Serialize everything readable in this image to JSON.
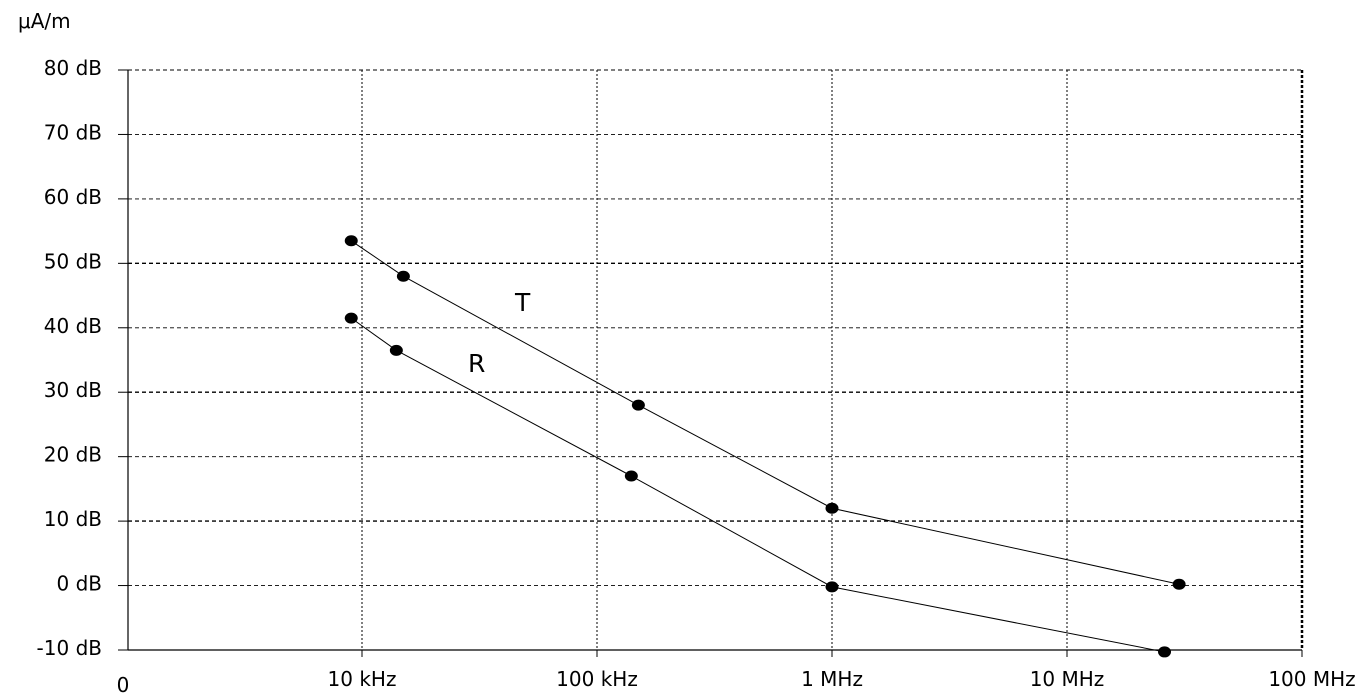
{
  "chart_data": {
    "type": "line",
    "ylabel": "μA/m",
    "yticks": [
      {
        "value": 80,
        "label": "80 dB"
      },
      {
        "value": 70,
        "label": "70 dB"
      },
      {
        "value": 60,
        "label": "60 dB"
      },
      {
        "value": 50,
        "label": "50 dB"
      },
      {
        "value": 40,
        "label": "40 dB"
      },
      {
        "value": 30,
        "label": "30 dB"
      },
      {
        "value": 20,
        "label": "20 dB"
      },
      {
        "value": 10,
        "label": "10 dB"
      },
      {
        "value": 0,
        "label": "0 dB"
      },
      {
        "value": -10,
        "label": "-10 dB"
      }
    ],
    "xticks": [
      {
        "value": 0,
        "label": "0"
      },
      {
        "value": 1,
        "label": "10 kHz"
      },
      {
        "value": 2,
        "label": "100 kHz"
      },
      {
        "value": 3,
        "label": "1 MHz"
      },
      {
        "value": 4,
        "label": "10 MHz"
      },
      {
        "value": 5,
        "label": "100 MHz"
      }
    ],
    "xlim": [
      0,
      5
    ],
    "ylim": [
      -10,
      80
    ],
    "x_scale": "log (decades)",
    "grid": true,
    "series": [
      {
        "name": "T",
        "points": [
          {
            "x": "9 kHz",
            "y": 53.5
          },
          {
            "x": "15 kHz",
            "y": 48
          },
          {
            "x": "150 kHz",
            "y": 28
          },
          {
            "x": "1 MHz",
            "y": 12
          },
          {
            "x": "30 MHz",
            "y": 0.2
          }
        ]
      },
      {
        "name": "R",
        "points": [
          {
            "x": "9 kHz",
            "y": 41.5
          },
          {
            "x": "14 kHz",
            "y": 36.5
          },
          {
            "x": "140 kHz",
            "y": 17
          },
          {
            "x": "1 MHz",
            "y": -0.2
          },
          {
            "x": "26 MHz",
            "y": -10.3
          }
        ]
      }
    ]
  }
}
